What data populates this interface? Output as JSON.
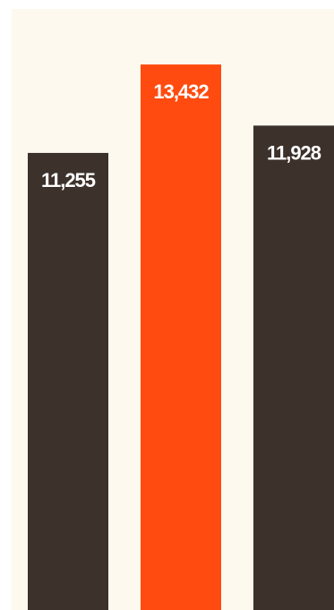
{
  "chart_data": {
    "type": "bar",
    "categories": [
      "",
      "",
      ""
    ],
    "values": [
      11255,
      13432,
      11928
    ],
    "data_labels": [
      "11,255",
      "13,432",
      "11,928"
    ],
    "title": "",
    "xlabel": "",
    "ylabel": "",
    "ylim": [
      0,
      14800
    ],
    "grid": false,
    "legend": "none",
    "colors": {
      "default": "#3d312b",
      "highlight": "#ff4b0f",
      "background": "#fdf9ef",
      "label": "#ffffff"
    },
    "highlight_index": 1
  }
}
